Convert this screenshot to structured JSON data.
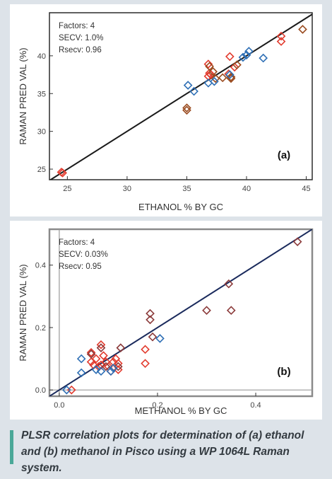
{
  "chart_data": [
    {
      "type": "scatter",
      "panel_label": "(a)",
      "xlabel": "ETHANOL % BY GC",
      "ylabel": "RAMAN PRED VAL (%)",
      "xlim": [
        23.5,
        45.5
      ],
      "ylim": [
        23.6,
        45.7
      ],
      "xticks": [
        25,
        30,
        35,
        40,
        45
      ],
      "yticks": [
        25,
        30,
        35,
        40
      ],
      "grid": false,
      "stats": [
        "Factors: 4",
        "SECV: 1.0%",
        "Rsecv: 0.96"
      ],
      "fit_line": {
        "from": [
          23.5,
          23.5
        ],
        "to": [
          45.5,
          45.5
        ],
        "color": "#1a1a1a"
      },
      "series": [
        {
          "color": "#e23b2e",
          "points": [
            [
              24.6,
              24.5
            ],
            [
              24.5,
              24.6
            ],
            [
              36.8,
              38.9
            ],
            [
              36.9,
              37.7
            ],
            [
              37.0,
              37.5
            ],
            [
              36.8,
              37.3
            ],
            [
              38.6,
              39.9
            ],
            [
              39.0,
              38.5
            ],
            [
              38.5,
              37.6
            ],
            [
              42.9,
              42.6
            ],
            [
              42.9,
              41.9
            ]
          ]
        },
        {
          "color": "#9a4b1f",
          "points": [
            [
              35.0,
              33.1
            ],
            [
              35.0,
              32.8
            ],
            [
              36.9,
              38.6
            ],
            [
              37.2,
              37.9
            ],
            [
              37.4,
              37.0
            ],
            [
              38.0,
              37.1
            ],
            [
              38.7,
              37.2
            ],
            [
              38.7,
              37.0
            ],
            [
              39.2,
              38.8
            ],
            [
              44.7,
              43.5
            ]
          ]
        },
        {
          "color": "#2e6fb5",
          "points": [
            [
              35.1,
              36.1
            ],
            [
              35.6,
              35.3
            ],
            [
              36.8,
              36.4
            ],
            [
              37.3,
              36.6
            ],
            [
              38.6,
              37.5
            ],
            [
              39.7,
              39.8
            ],
            [
              40.0,
              40.1
            ],
            [
              40.2,
              40.6
            ],
            [
              41.4,
              39.7
            ]
          ]
        }
      ]
    },
    {
      "type": "scatter",
      "panel_label": "(b)",
      "xlabel": "METHANOL % BY GC",
      "ylabel": "RAMAN PRED VAL (%)",
      "xlim": [
        -0.02,
        0.515
      ],
      "ylim": [
        -0.02,
        0.515
      ],
      "xticks": [
        0.0,
        0.2,
        0.4
      ],
      "yticks": [
        0.0,
        0.2,
        0.4
      ],
      "tick_labels": [
        "0.0",
        "0.2",
        "0.4"
      ],
      "grid": false,
      "stats": [
        "Factors: 4",
        "SECV: 0.03%",
        "Rsecv: 0.95"
      ],
      "fit_line": {
        "from": [
          -0.02,
          -0.02
        ],
        "to": [
          0.515,
          0.515
        ],
        "color": "#1a2a5c"
      },
      "series": [
        {
          "color": "#e23b2e",
          "points": [
            [
              0.025,
              0.0
            ],
            [
              0.065,
              0.09
            ],
            [
              0.07,
              0.08
            ],
            [
              0.075,
              0.1
            ],
            [
              0.08,
              0.075
            ],
            [
              0.085,
              0.08
            ],
            [
              0.09,
              0.11
            ],
            [
              0.095,
              0.09
            ],
            [
              0.1,
              0.075
            ],
            [
              0.105,
              0.06
            ],
            [
              0.11,
              0.09
            ],
            [
              0.115,
              0.1
            ],
            [
              0.12,
              0.085
            ],
            [
              0.12,
              0.065
            ],
            [
              0.065,
              0.12
            ],
            [
              0.085,
              0.145
            ],
            [
              0.175,
              0.13
            ],
            [
              0.175,
              0.085
            ]
          ]
        },
        {
          "color": "#8b3a3a",
          "points": [
            [
              0.065,
              0.115
            ],
            [
              0.085,
              0.135
            ],
            [
              0.095,
              0.075
            ],
            [
              0.12,
              0.075
            ],
            [
              0.125,
              0.135
            ],
            [
              0.185,
              0.245
            ],
            [
              0.185,
              0.225
            ],
            [
              0.19,
              0.17
            ],
            [
              0.3,
              0.255
            ],
            [
              0.345,
              0.34
            ],
            [
              0.35,
              0.255
            ],
            [
              0.485,
              0.475
            ]
          ]
        },
        {
          "color": "#2e6fb5",
          "points": [
            [
              0.015,
              0.0
            ],
            [
              0.045,
              0.1
            ],
            [
              0.045,
              0.055
            ],
            [
              0.075,
              0.065
            ],
            [
              0.085,
              0.06
            ],
            [
              0.105,
              0.06
            ],
            [
              0.11,
              0.07
            ],
            [
              0.205,
              0.165
            ]
          ]
        }
      ]
    }
  ],
  "caption": "PLSR correlation plots for determination of (a) ethanol and (b) methanol in Pisco using a WP 1064L Raman system."
}
